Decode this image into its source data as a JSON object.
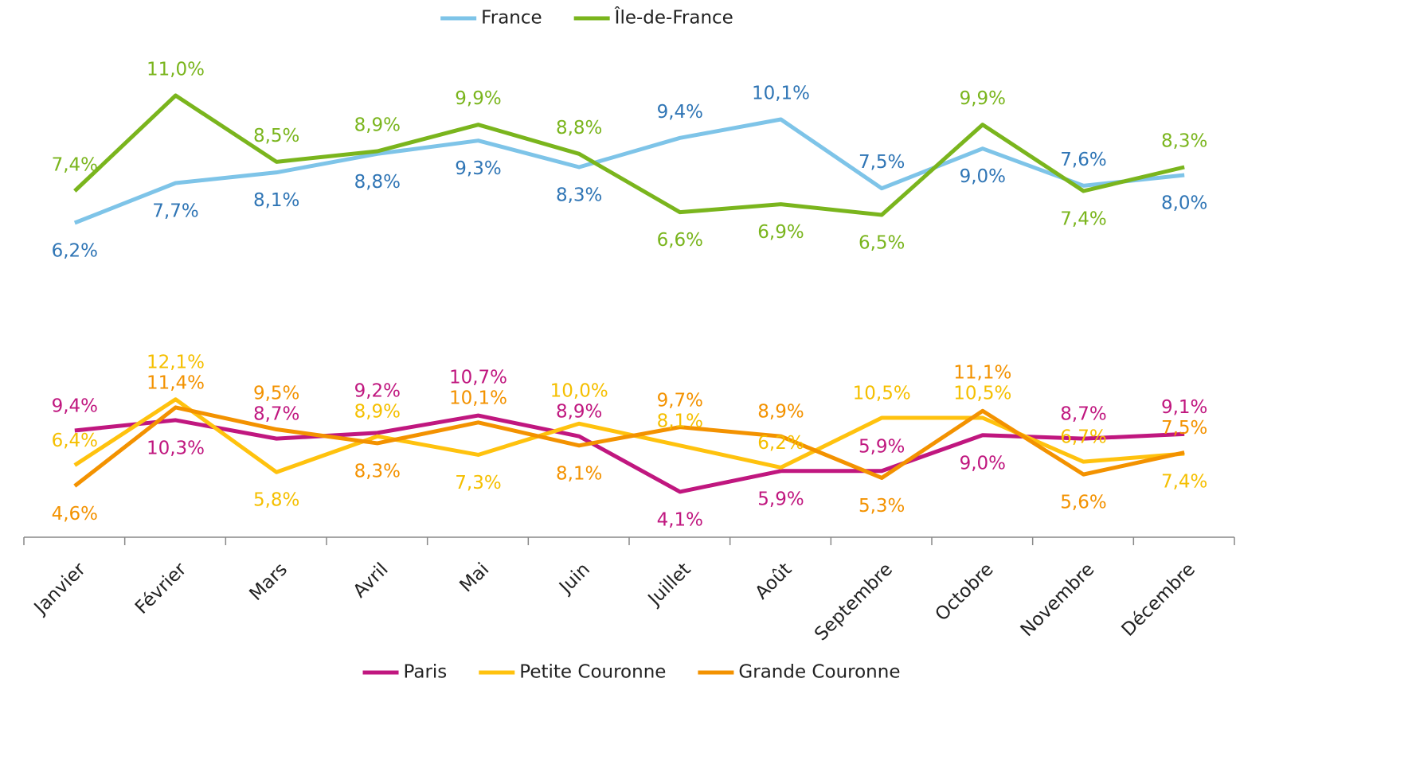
{
  "chart_data": {
    "type": "line",
    "categories": [
      "Janvier",
      "Février",
      "Mars",
      "Avril",
      "Mai",
      "Juin",
      "Juillet",
      "Août",
      "Septembre",
      "Octobre",
      "Novembre",
      "Décembre"
    ],
    "ylim": [
      5,
      12.8
    ],
    "y2lim": [
      1.2,
      13.6
    ],
    "series": [
      {
        "name": "France",
        "color": "#7ec4e8",
        "label_color": "#2f75b5",
        "axis": "y",
        "values": [
          6.2,
          7.7,
          8.1,
          8.8,
          9.3,
          8.3,
          9.4,
          10.1,
          7.5,
          9.0,
          7.6,
          8.0
        ],
        "value_labels": [
          "6,2%",
          "7,7%",
          "8,1%",
          "8,8%",
          "9,3%",
          "8,3%",
          "9,4%",
          "10,1%",
          "7,5%",
          "9,0%",
          "7,6%",
          "8,0%"
        ]
      },
      {
        "name": "Île-de-France",
        "color": "#7ab51d",
        "label_color": "#7ab51d",
        "axis": "y",
        "values": [
          7.4,
          11.0,
          8.5,
          8.9,
          9.9,
          8.8,
          6.6,
          6.9,
          6.5,
          9.9,
          7.4,
          8.3
        ],
        "value_labels": [
          "7,4%",
          "11,0%",
          "8,5%",
          "8,9%",
          "9,9%",
          "8,8%",
          "6,6%",
          "6,9%",
          "6,5%",
          "9,9%",
          "7,4%",
          "8,3%"
        ]
      },
      {
        "name": "Paris",
        "color": "#c0177f",
        "label_color": "#c0177f",
        "axis": "y2",
        "values": [
          9.4,
          10.3,
          8.7,
          9.2,
          10.7,
          8.9,
          4.1,
          5.9,
          5.9,
          9.0,
          8.7,
          9.1
        ],
        "value_labels": [
          "9,4%",
          "10,3%",
          "8,7%",
          "9,2%",
          "10,7%",
          "8,9%",
          "4,1%",
          "5,9%",
          "5,9%",
          "9,0%",
          "8,7%",
          "9,1%"
        ]
      },
      {
        "name": "Petite Couronne",
        "color": "#ffc20e",
        "label_color": "#f5bf00",
        "axis": "y2",
        "values": [
          6.4,
          12.1,
          5.8,
          8.9,
          7.3,
          10.0,
          8.1,
          6.2,
          10.5,
          10.5,
          6.7,
          7.4
        ],
        "value_labels": [
          "6,4%",
          "12,1%",
          "5,8%",
          "8,9%",
          "7,3%",
          "10,0%",
          "8,1%",
          "6,2%",
          "10,5%",
          "10,5%",
          "6,7%",
          "7,4%"
        ]
      },
      {
        "name": "Grande Couronne",
        "color": "#f39200",
        "label_color": "#f39200",
        "axis": "y2",
        "values": [
          4.6,
          11.4,
          9.5,
          8.3,
          10.1,
          8.1,
          9.7,
          8.9,
          5.3,
          11.1,
          5.6,
          7.5
        ],
        "value_labels": [
          "4,6%",
          "11,4%",
          "9,5%",
          "8,3%",
          "10,1%",
          "8,1%",
          "9,7%",
          "8,9%",
          "5,3%",
          "11,1%",
          "5,6%",
          "7,5%"
        ]
      }
    ]
  }
}
